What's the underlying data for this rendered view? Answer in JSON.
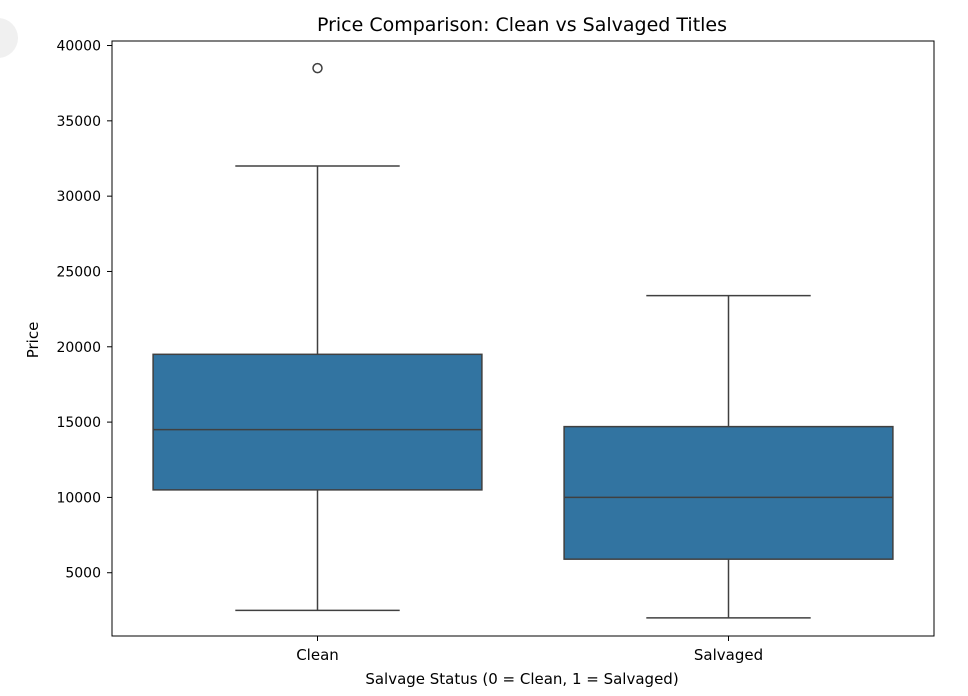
{
  "chart_data": {
    "type": "box",
    "title": "Price Comparison: Clean vs Salvaged Titles",
    "xlabel": "Salvage Status (0 = Clean, 1 = Salvaged)",
    "ylabel": "Price",
    "categories": [
      "Clean",
      "Salvaged"
    ],
    "ylim": [
      800,
      40300
    ],
    "yticks": [
      5000,
      10000,
      15000,
      20000,
      25000,
      30000,
      35000,
      40000
    ],
    "boxes": [
      {
        "category": "Clean",
        "whisker_low": 2500,
        "q1": 10500,
        "median": 14500,
        "q3": 19500,
        "whisker_high": 32000,
        "outliers": [
          38500
        ]
      },
      {
        "category": "Salvaged",
        "whisker_low": 2000,
        "q1": 5900,
        "median": 10000,
        "q3": 14700,
        "whisker_high": 23400,
        "outliers": []
      }
    ],
    "box_color": "#3274a1",
    "line_color": "#404040",
    "grid": false,
    "legend": false
  }
}
